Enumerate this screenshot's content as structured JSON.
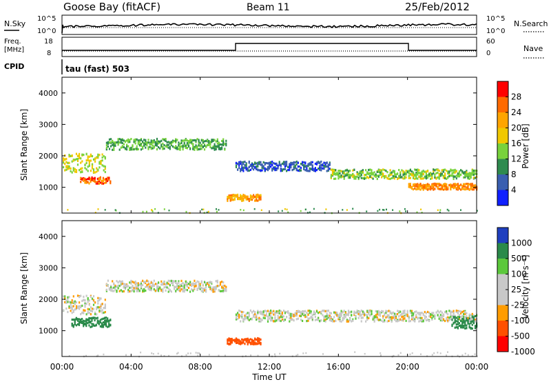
{
  "header": {
    "station": "Goose Bay (fitACF)",
    "beam": "Beam 11",
    "date": "25/Feb/2012"
  },
  "labels": {
    "nsky": "N.Sky",
    "nsearch": "N.Search",
    "freq_line1": "Freq.",
    "freq_line2": "[MHz]",
    "nave": "Nave",
    "cpid": "CPID",
    "cpid_value": "tau (fast) 503",
    "ylabel": "Slant Range [km]",
    "xlabel": "Time UT",
    "power_label": "Power [dB]",
    "velocity_label": "Velocity [m s⁻¹]"
  },
  "noise_axis": {
    "left_ticks": [
      "10^5",
      "10^0"
    ],
    "right_ticks": [
      "10^5",
      "10^0"
    ]
  },
  "freq_axis": {
    "left_ticks": [
      "18",
      "8"
    ],
    "right_ticks": [
      "60",
      "0"
    ]
  },
  "time_ticks": [
    "00:00",
    "04:00",
    "08:00",
    "12:00",
    "16:00",
    "20:00",
    "00:00"
  ],
  "range_ticks": [
    "4000",
    "3000",
    "2000",
    "1000"
  ],
  "power_scale": {
    "ticks": [
      "28",
      "24",
      "20",
      "16",
      "12",
      "8",
      "4"
    ],
    "colors": [
      "#ff0000",
      "#ff6a00",
      "#ffa500",
      "#f0c800",
      "#78d23c",
      "#2f8b4f",
      "#3a5fb0",
      "#1020ff"
    ]
  },
  "velocity_scale": {
    "ticks": [
      "1000",
      "500",
      "100",
      "25",
      "-25",
      "-100",
      "-500",
      "-1000"
    ],
    "colors": [
      "#1f3fbf",
      "#2a8a4a",
      "#5cc83c",
      "#c8c8c8",
      "#c8c8c8",
      "#ff9c00",
      "#ff5000",
      "#ff0000"
    ]
  },
  "chart_data": [
    {
      "type": "scatter",
      "title": "Power [dB]",
      "xlabel": "Time UT",
      "ylabel": "Slant Range [km]",
      "xlim": [
        0,
        24
      ],
      "ylim": [
        180,
        4500
      ],
      "clim": [
        0,
        32
      ],
      "regions": [
        {
          "t0": 0.0,
          "t1": 2.5,
          "r_center": 1800,
          "r_width": 600,
          "value": 16
        },
        {
          "t0": 1.0,
          "t1": 2.8,
          "r_center": 1250,
          "r_width": 200,
          "value": 26
        },
        {
          "t0": 2.5,
          "t1": 9.5,
          "r_center": 2400,
          "r_width": 350,
          "value": 12
        },
        {
          "t0": 9.5,
          "t1": 11.5,
          "r_center": 700,
          "r_width": 200,
          "value": 22
        },
        {
          "t0": 10.0,
          "t1": 15.5,
          "r_center": 1700,
          "r_width": 300,
          "value": 6
        },
        {
          "t0": 15.5,
          "t1": 24.0,
          "r_center": 1450,
          "r_width": 300,
          "value": 14
        },
        {
          "t0": 20.0,
          "t1": 24.0,
          "r_center": 1050,
          "r_width": 200,
          "value": 24
        }
      ]
    },
    {
      "type": "scatter",
      "title": "Velocity [m s⁻¹]",
      "xlabel": "Time UT",
      "ylabel": "Slant Range [km]",
      "xlim": [
        0,
        24
      ],
      "ylim": [
        180,
        4500
      ],
      "clim": [
        -1000,
        1000
      ],
      "regions": [
        {
          "t0": 0.0,
          "t1": 2.5,
          "r_center": 1850,
          "r_width": 600,
          "value": 0
        },
        {
          "t0": 0.5,
          "t1": 2.8,
          "r_center": 1300,
          "r_width": 300,
          "value": 150
        },
        {
          "t0": 2.5,
          "t1": 9.5,
          "r_center": 2450,
          "r_width": 350,
          "value": 0
        },
        {
          "t0": 9.5,
          "t1": 11.5,
          "r_center": 700,
          "r_width": 200,
          "value": -150
        },
        {
          "t0": 10.0,
          "t1": 24.0,
          "r_center": 1500,
          "r_width": 350,
          "value": 0
        },
        {
          "t0": 22.5,
          "t1": 24.0,
          "r_center": 1300,
          "r_width": 400,
          "value": 300
        }
      ]
    }
  ]
}
